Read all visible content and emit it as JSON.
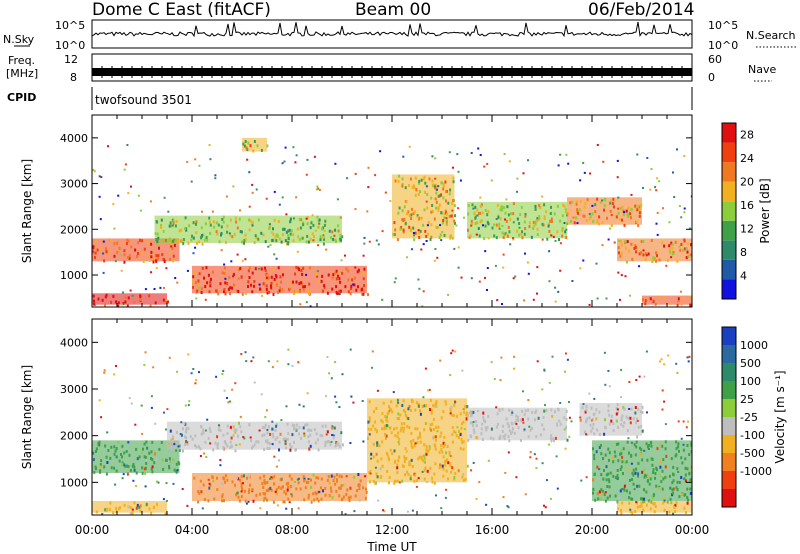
{
  "header": {
    "station": "Dome C East (fitACF)",
    "beam": "Beam 00",
    "date": "06/Feb/2014"
  },
  "sky_strip": {
    "left_label": "N.Sky",
    "tick_top": "10^5",
    "tick_bottom": "10^0",
    "right_label": "N.Search",
    "right_tick_top": "10^5",
    "right_tick_bottom": "10^0"
  },
  "freq_strip": {
    "label_line1": "Freq.",
    "label_line2": "[MHz]",
    "tick_top": "12",
    "tick_bottom": "8",
    "right_label": "Nave",
    "right_tick_top": "60",
    "right_tick_bottom": "0"
  },
  "cpid": {
    "label": "CPID",
    "value": "twofsound 3501"
  },
  "colors": {
    "axis": "#000000",
    "power_scale": [
      "#1010e0",
      "#1e5aa8",
      "#2f8a6a",
      "#3fa04a",
      "#8ccd3c",
      "#f0b020",
      "#f07820",
      "#f04010",
      "#e01010"
    ],
    "velocity_scale": [
      "#1840c0",
      "#2a6aa0",
      "#2f8a6a",
      "#3fa04a",
      "#8ccd3c",
      "#bebebe",
      "#f0b020",
      "#f08020",
      "#f04010",
      "#e01010"
    ]
  },
  "chart_data": [
    {
      "type": "heatmap",
      "panel": "power",
      "xlabel": "",
      "ylabel": "Slant Range [km]",
      "xlim": [
        "00:00",
        "00:00"
      ],
      "ylim": [
        300,
        4500
      ],
      "yticks": [
        1000,
        2000,
        3000,
        4000
      ],
      "colorbar": {
        "label": "Power [dB]",
        "ticks": [
          "4",
          "8",
          "12",
          "16",
          "20",
          "24",
          "28"
        ],
        "range": [
          0,
          30
        ]
      },
      "features": [
        {
          "t_start": 0.0,
          "t_end": 3.0,
          "r_start": 350,
          "r_end": 600,
          "level": 28
        },
        {
          "t_start": 0.0,
          "t_end": 3.5,
          "r_start": 1300,
          "r_end": 1800,
          "level": 24
        },
        {
          "t_start": 4.0,
          "t_end": 11.0,
          "r_start": 600,
          "r_end": 1200,
          "level": 26
        },
        {
          "t_start": 2.5,
          "t_end": 10.0,
          "r_start": 1700,
          "r_end": 2300,
          "level": 14
        },
        {
          "t_start": 6.0,
          "t_end": 7.0,
          "r_start": 3700,
          "r_end": 4000,
          "level": 18
        },
        {
          "t_start": 12.0,
          "t_end": 14.5,
          "r_start": 1800,
          "r_end": 3200,
          "level": 18
        },
        {
          "t_start": 15.0,
          "t_end": 19.0,
          "r_start": 1800,
          "r_end": 2600,
          "level": 16
        },
        {
          "t_start": 19.0,
          "t_end": 22.0,
          "r_start": 2100,
          "r_end": 2700,
          "level": 20
        },
        {
          "t_start": 21.0,
          "t_end": 24.0,
          "r_start": 1300,
          "r_end": 1800,
          "level": 22
        },
        {
          "t_start": 22.0,
          "t_end": 24.0,
          "r_start": 350,
          "r_end": 550,
          "level": 24
        }
      ]
    },
    {
      "type": "heatmap",
      "panel": "velocity",
      "xlabel": "Time UT",
      "ylabel": "Slant Range [km]",
      "xlim": [
        "00:00",
        "00:00"
      ],
      "xticks": [
        "00:00",
        "04:00",
        "08:00",
        "12:00",
        "16:00",
        "20:00",
        "00:00"
      ],
      "ylim": [
        300,
        4500
      ],
      "yticks": [
        1000,
        2000,
        3000,
        4000
      ],
      "colorbar": {
        "label": "Velocity [m s⁻¹]",
        "ticks": [
          "1000",
          "500",
          "100",
          "25",
          "-25",
          "-100",
          "-500",
          "-1000"
        ]
      },
      "features": [
        {
          "t_start": 0.0,
          "t_end": 3.0,
          "r_start": 350,
          "r_end": 600,
          "level": "-100"
        },
        {
          "t_start": 0.0,
          "t_end": 3.5,
          "r_start": 1200,
          "r_end": 1900,
          "level": "100"
        },
        {
          "t_start": 4.0,
          "t_end": 11.0,
          "r_start": 600,
          "r_end": 1200,
          "level": "-500"
        },
        {
          "t_start": 3.0,
          "t_end": 10.0,
          "r_start": 1700,
          "r_end": 2300,
          "level": "-25"
        },
        {
          "t_start": 11.0,
          "t_end": 15.0,
          "r_start": 1000,
          "r_end": 2800,
          "level": "-100"
        },
        {
          "t_start": 15.0,
          "t_end": 19.0,
          "r_start": 1900,
          "r_end": 2600,
          "level": "-25"
        },
        {
          "t_start": 19.5,
          "t_end": 22.0,
          "r_start": 2000,
          "r_end": 2700,
          "level": "-25"
        },
        {
          "t_start": 20.0,
          "t_end": 24.0,
          "r_start": 600,
          "r_end": 1900,
          "level": "100"
        },
        {
          "t_start": 21.0,
          "t_end": 24.0,
          "r_start": 350,
          "r_end": 600,
          "level": "-100"
        }
      ]
    }
  ]
}
